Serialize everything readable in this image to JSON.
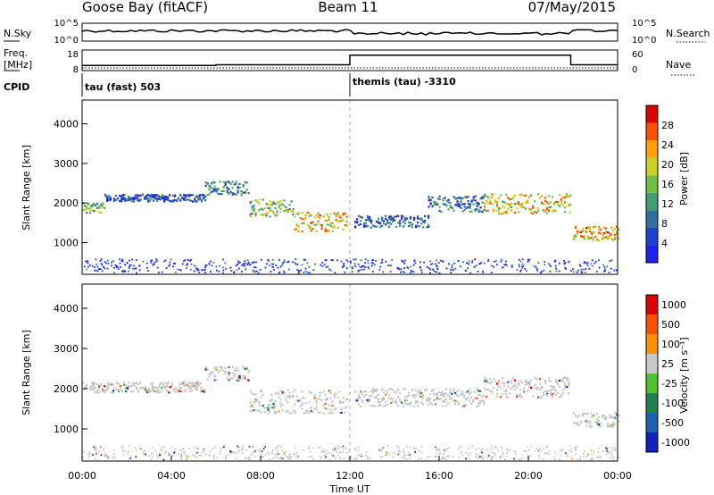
{
  "header": {
    "station": "Goose Bay (fitACF)",
    "beam": "Beam 11",
    "date": "07/May/2015"
  },
  "strips": {
    "nsky_label": "N.Sky",
    "nsky_ticks": [
      "10^5",
      "10^0"
    ],
    "nsearch_label": "N.Search",
    "nsearch_ticks": [
      "10^5",
      "10^0"
    ],
    "freq_label": "Freq.",
    "freq_unit": "[MHz]",
    "freq_ticks": [
      "18",
      "8"
    ],
    "nave_label": "Nave",
    "nave_ticks": [
      "60",
      "0"
    ],
    "cpid_label": "CPID",
    "cpid_modes": [
      {
        "name": "tau (fast) 503",
        "start_hour": 0,
        "end_hour": 12
      },
      {
        "name": "themis (tau) -3310",
        "start_hour": 12,
        "end_hour": 24
      }
    ],
    "freq_series": [
      {
        "hour": 0,
        "mhz": 10.5
      },
      {
        "hour": 6,
        "mhz": 10.8
      },
      {
        "hour": 12,
        "mhz": 15.5
      },
      {
        "hour": 21.9,
        "mhz": 10.8
      },
      {
        "hour": 24,
        "mhz": 10.8
      }
    ]
  },
  "chart_data": [
    {
      "type": "heatmap",
      "name": "Power",
      "xlabel": "",
      "ylabel": "Slant Range [km]",
      "xlim_hours": [
        0,
        24
      ],
      "ylim_km": [
        200,
        4600
      ],
      "yticks": [
        "1000",
        "2000",
        "3000",
        "4000"
      ],
      "colorbar": {
        "label": "Power [dB]",
        "ticks": [
          "4",
          "8",
          "12",
          "16",
          "20",
          "24",
          "28"
        ],
        "range": [
          0,
          32
        ],
        "colors": [
          "#1f1ff0",
          "#1f3fd0",
          "#2f6fa0",
          "#3f9f70",
          "#6fc040",
          "#c8d020",
          "#ffa000",
          "#ff5000",
          "#e00000"
        ]
      },
      "echo_bands": [
        {
          "start_hour": 0.0,
          "end_hour": 1.0,
          "range_km": 1900,
          "width_km": 260,
          "power_db": 14
        },
        {
          "start_hour": 1.0,
          "end_hour": 5.5,
          "range_km": 2150,
          "width_km": 180,
          "power_db": 6
        },
        {
          "start_hour": 5.5,
          "end_hour": 7.5,
          "range_km": 2400,
          "width_km": 350,
          "power_db": 10
        },
        {
          "start_hour": 7.5,
          "end_hour": 9.5,
          "range_km": 1900,
          "width_km": 450,
          "power_db": 16
        },
        {
          "start_hour": 9.5,
          "end_hour": 11.9,
          "range_km": 1550,
          "width_km": 500,
          "power_db": 22
        },
        {
          "start_hour": 12.2,
          "end_hour": 15.5,
          "range_km": 1550,
          "width_km": 300,
          "power_db": 7
        },
        {
          "start_hour": 15.5,
          "end_hour": 18.0,
          "range_km": 2000,
          "width_km": 400,
          "power_db": 8
        },
        {
          "start_hour": 18.0,
          "end_hour": 21.9,
          "range_km": 2000,
          "width_km": 500,
          "power_db": 20
        },
        {
          "start_hour": 22.0,
          "end_hour": 24.0,
          "range_km": 1250,
          "width_km": 350,
          "power_db": 22
        }
      ]
    },
    {
      "type": "heatmap",
      "name": "Velocity",
      "xlabel": "Time UT",
      "ylabel": "Slant Range [km]",
      "xlim_hours": [
        0,
        24
      ],
      "ylim_km": [
        200,
        4600
      ],
      "yticks": [
        "1000",
        "2000",
        "3000",
        "4000"
      ],
      "xticks": [
        "00:00",
        "04:00",
        "08:00",
        "12:00",
        "16:00",
        "20:00",
        "00:00"
      ],
      "colorbar": {
        "label": "Velocity [m s⁻¹]",
        "ticks": [
          "1000",
          "500",
          "100",
          "25",
          "-25",
          "-100",
          "-500",
          "-1000"
        ],
        "colors": [
          "#1020c0",
          "#2060b0",
          "#208050",
          "#50c030",
          "#c8c8c8",
          "#ff9000",
          "#ff5000",
          "#e00000"
        ]
      },
      "note": "Most echoes near 0 m/s (grey); scattered small velocities",
      "echo_bands": [
        {
          "start_hour": 0.0,
          "end_hour": 5.5,
          "range_km": 2050,
          "width_km": 250,
          "velocity": 0
        },
        {
          "start_hour": 5.5,
          "end_hour": 7.5,
          "range_km": 2400,
          "width_km": 350,
          "velocity": 0
        },
        {
          "start_hour": 7.5,
          "end_hour": 11.9,
          "range_km": 1700,
          "width_km": 600,
          "velocity": 0
        },
        {
          "start_hour": 12.2,
          "end_hour": 18.0,
          "range_km": 1800,
          "width_km": 450,
          "velocity": 0
        },
        {
          "start_hour": 18.0,
          "end_hour": 21.9,
          "range_km": 2050,
          "width_km": 500,
          "velocity": 0
        },
        {
          "start_hour": 22.0,
          "end_hour": 24.0,
          "range_km": 1250,
          "width_km": 350,
          "velocity": 0
        }
      ]
    }
  ]
}
